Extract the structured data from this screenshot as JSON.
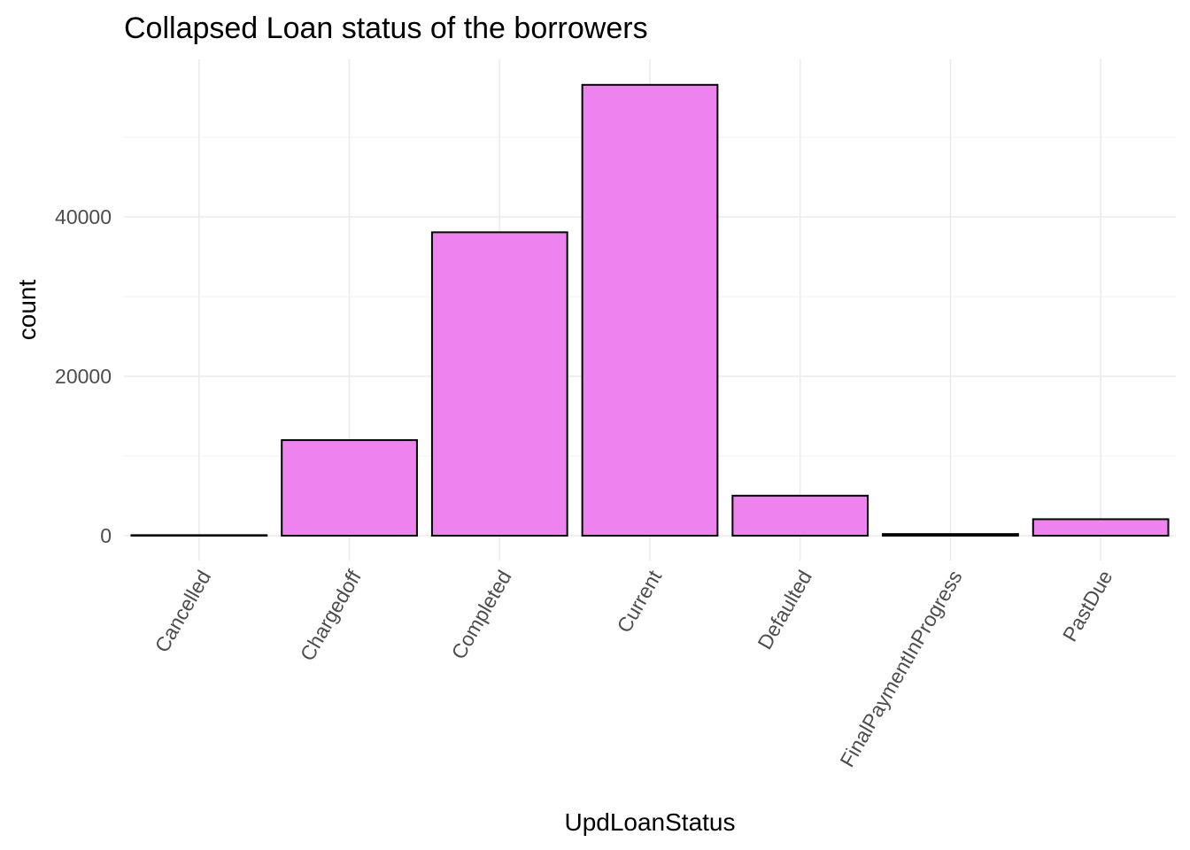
{
  "chart_data": {
    "type": "bar",
    "title": "Collapsed Loan status of the borrowers",
    "xlabel": "UpdLoanStatus",
    "ylabel": "count",
    "categories": [
      "Cancelled",
      "Chargedoff",
      "Completed",
      "Current",
      "Defaulted",
      "FinalPaymentInProgress",
      "PastDue"
    ],
    "values": [
      5,
      11992,
      38074,
      56576,
      5018,
      205,
      2067
    ],
    "y_ticks": [
      0,
      20000,
      40000
    ],
    "y_tick_labels": [
      "0",
      "20000",
      "40000"
    ],
    "ylim": [
      0,
      59400
    ],
    "grid": true,
    "bar_fill": "#EE82EE",
    "bar_outline": "#000000"
  }
}
